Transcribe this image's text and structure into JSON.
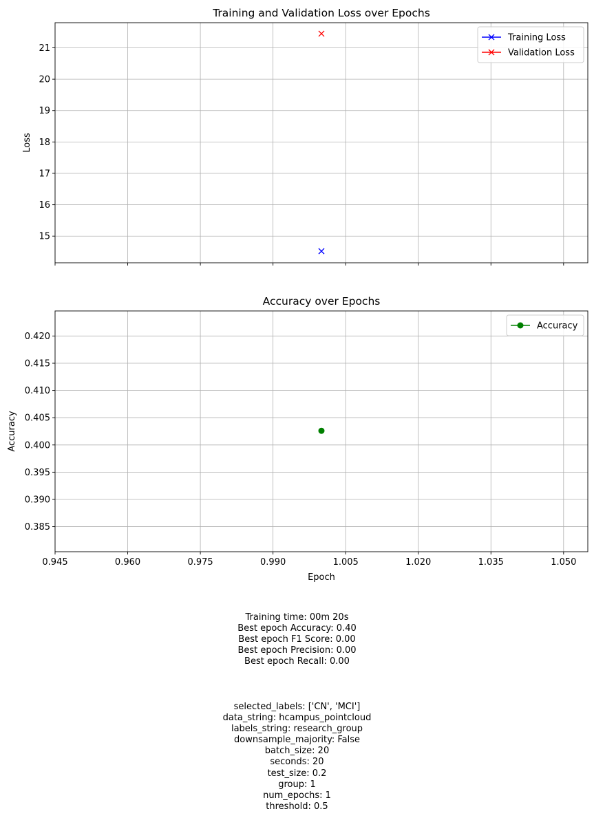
{
  "chart_data": [
    {
      "type": "line",
      "title": "Training and Validation Loss over Epochs",
      "xlabel": "",
      "ylabel": "Loss",
      "xlim": [
        0.945,
        1.055
      ],
      "ylim": [
        14.15,
        21.8
      ],
      "xticks": [
        0.945,
        0.96,
        0.975,
        0.99,
        1.005,
        1.02,
        1.035,
        1.05
      ],
      "xtick_labels_visible": false,
      "yticks": [
        15,
        16,
        17,
        18,
        19,
        20,
        21
      ],
      "ytick_labels": [
        "15",
        "16",
        "17",
        "18",
        "19",
        "20",
        "21"
      ],
      "grid": true,
      "legend_position": "top-right",
      "series": [
        {
          "name": "Training Loss",
          "color": "#0000ff",
          "marker": "x",
          "x": [
            1
          ],
          "y": [
            14.52
          ]
        },
        {
          "name": "Validation Loss",
          "color": "#ff0000",
          "marker": "x",
          "x": [
            1
          ],
          "y": [
            21.45
          ]
        }
      ]
    },
    {
      "type": "line",
      "title": "Accuracy over Epochs",
      "xlabel": "Epoch",
      "ylabel": "Accuracy",
      "xlim": [
        0.945,
        1.055
      ],
      "ylim": [
        0.3804,
        0.4246
      ],
      "xticks": [
        0.945,
        0.96,
        0.975,
        0.99,
        1.005,
        1.02,
        1.035,
        1.05
      ],
      "xtick_labels": [
        "0.945",
        "0.960",
        "0.975",
        "0.990",
        "1.005",
        "1.020",
        "1.035",
        "1.050"
      ],
      "yticks": [
        0.385,
        0.39,
        0.395,
        0.4,
        0.405,
        0.41,
        0.415,
        0.42
      ],
      "ytick_labels": [
        "0.385",
        "0.390",
        "0.395",
        "0.400",
        "0.405",
        "0.410",
        "0.415",
        "0.420"
      ],
      "grid": true,
      "legend_position": "top-right",
      "series": [
        {
          "name": "Accuracy",
          "color": "#008000",
          "marker": "o",
          "x": [
            1
          ],
          "y": [
            0.4026
          ]
        }
      ]
    }
  ],
  "summary": {
    "lines": [
      "Training time: 00m 20s",
      "Best epoch Accuracy: 0.40",
      "Best epoch F1 Score: 0.00",
      "Best epoch Precision: 0.00",
      "Best epoch Recall: 0.00"
    ]
  },
  "params": {
    "lines": [
      "selected_labels: ['CN', 'MCI']",
      "data_string: hcampus_pointcloud",
      "labels_string: research_group",
      "downsample_majority: False",
      "batch_size: 20",
      "seconds: 20",
      "test_size: 0.2",
      "group: 1",
      "num_epochs: 1",
      "threshold: 0.5"
    ]
  }
}
